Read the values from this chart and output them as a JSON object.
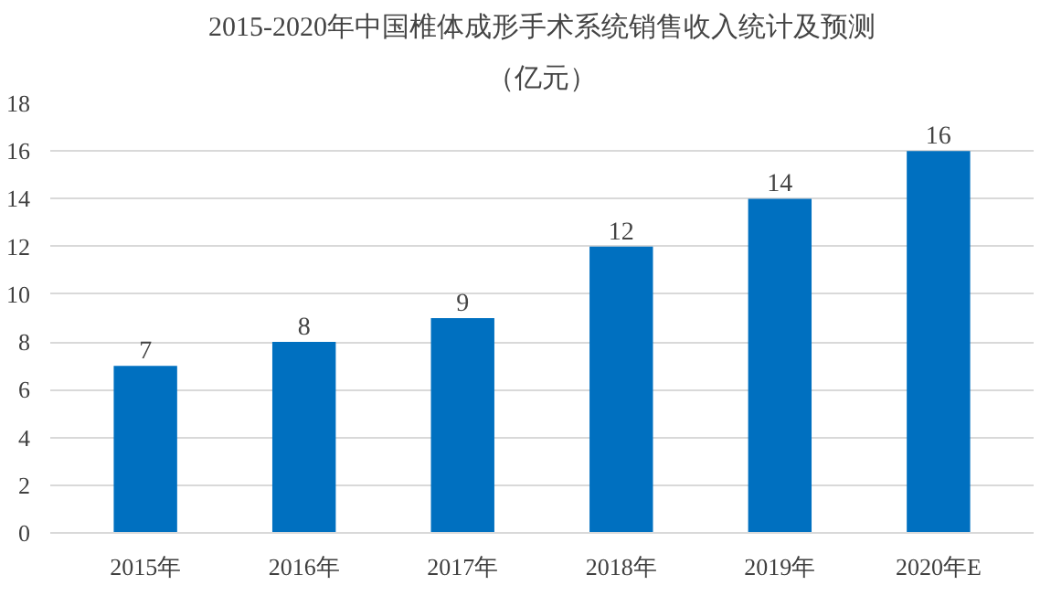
{
  "chart_data": {
    "type": "bar",
    "title": "2015-2020年中国椎体成形手术系统销售收入统计及预测",
    "subtitle": "（亿元）",
    "categories": [
      "2015年",
      "2016年",
      "2017年",
      "2018年",
      "2019年",
      "2020年E"
    ],
    "values": [
      7,
      8,
      9,
      12,
      14,
      16
    ],
    "color": "#0070c0",
    "ylim": [
      0,
      18
    ],
    "yticks": [
      0,
      2,
      4,
      6,
      8,
      10,
      12,
      14,
      16,
      18
    ],
    "grid": "y",
    "data_labels": true
  }
}
